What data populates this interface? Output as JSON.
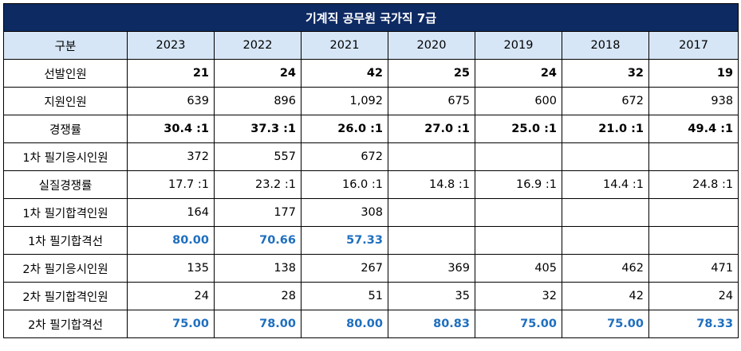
{
  "title": "기계직 공무원 국가직 7급",
  "header": {
    "label": "구분",
    "years": [
      "2023",
      "2022",
      "2021",
      "2020",
      "2019",
      "2018",
      "2017"
    ]
  },
  "rows": [
    {
      "label": "선발인원",
      "style": "bold",
      "values": [
        "21",
        "24",
        "42",
        "25",
        "24",
        "32",
        "19"
      ]
    },
    {
      "label": "지원인원",
      "style": "normal",
      "values": [
        "639",
        "896",
        "1,092",
        "675",
        "600",
        "672",
        "938"
      ]
    },
    {
      "label": "경쟁률",
      "style": "bold",
      "values": [
        "30.4 :1",
        "37.3 :1",
        "26.0 :1",
        "27.0 :1",
        "25.0 :1",
        "21.0 :1",
        "49.4 :1"
      ]
    },
    {
      "label": "1차 필기응시인원",
      "style": "normal",
      "values": [
        "372",
        "557",
        "672",
        "",
        "",
        "",
        ""
      ]
    },
    {
      "label": "실질경쟁률",
      "style": "normal",
      "values": [
        "17.7 :1",
        "23.2 :1",
        "16.0 :1",
        "14.8 :1",
        "16.9 :1",
        "14.4 :1",
        "24.8 :1"
      ]
    },
    {
      "label": "1차 필기합격인원",
      "style": "normal",
      "values": [
        "164",
        "177",
        "308",
        "",
        "",
        "",
        ""
      ]
    },
    {
      "label": "1차 필기합격선",
      "style": "blue",
      "values": [
        "80.00",
        "70.66",
        "57.33",
        "",
        "",
        "",
        ""
      ]
    },
    {
      "label": "2차 필기응시인원",
      "style": "normal",
      "values": [
        "135",
        "138",
        "267",
        "369",
        "405",
        "462",
        "471"
      ]
    },
    {
      "label": "2차 필기합격인원",
      "style": "normal",
      "values": [
        "24",
        "28",
        "51",
        "35",
        "32",
        "42",
        "24"
      ]
    },
    {
      "label": "2차 필기합격선",
      "style": "blue",
      "values": [
        "75.00",
        "78.00",
        "80.00",
        "80.83",
        "75.00",
        "75.00",
        "78.33"
      ]
    }
  ],
  "colors": {
    "title_bg": "#0e2a63",
    "header_bg": "#d6e6f6",
    "blue_text": "#1f6fbf"
  }
}
